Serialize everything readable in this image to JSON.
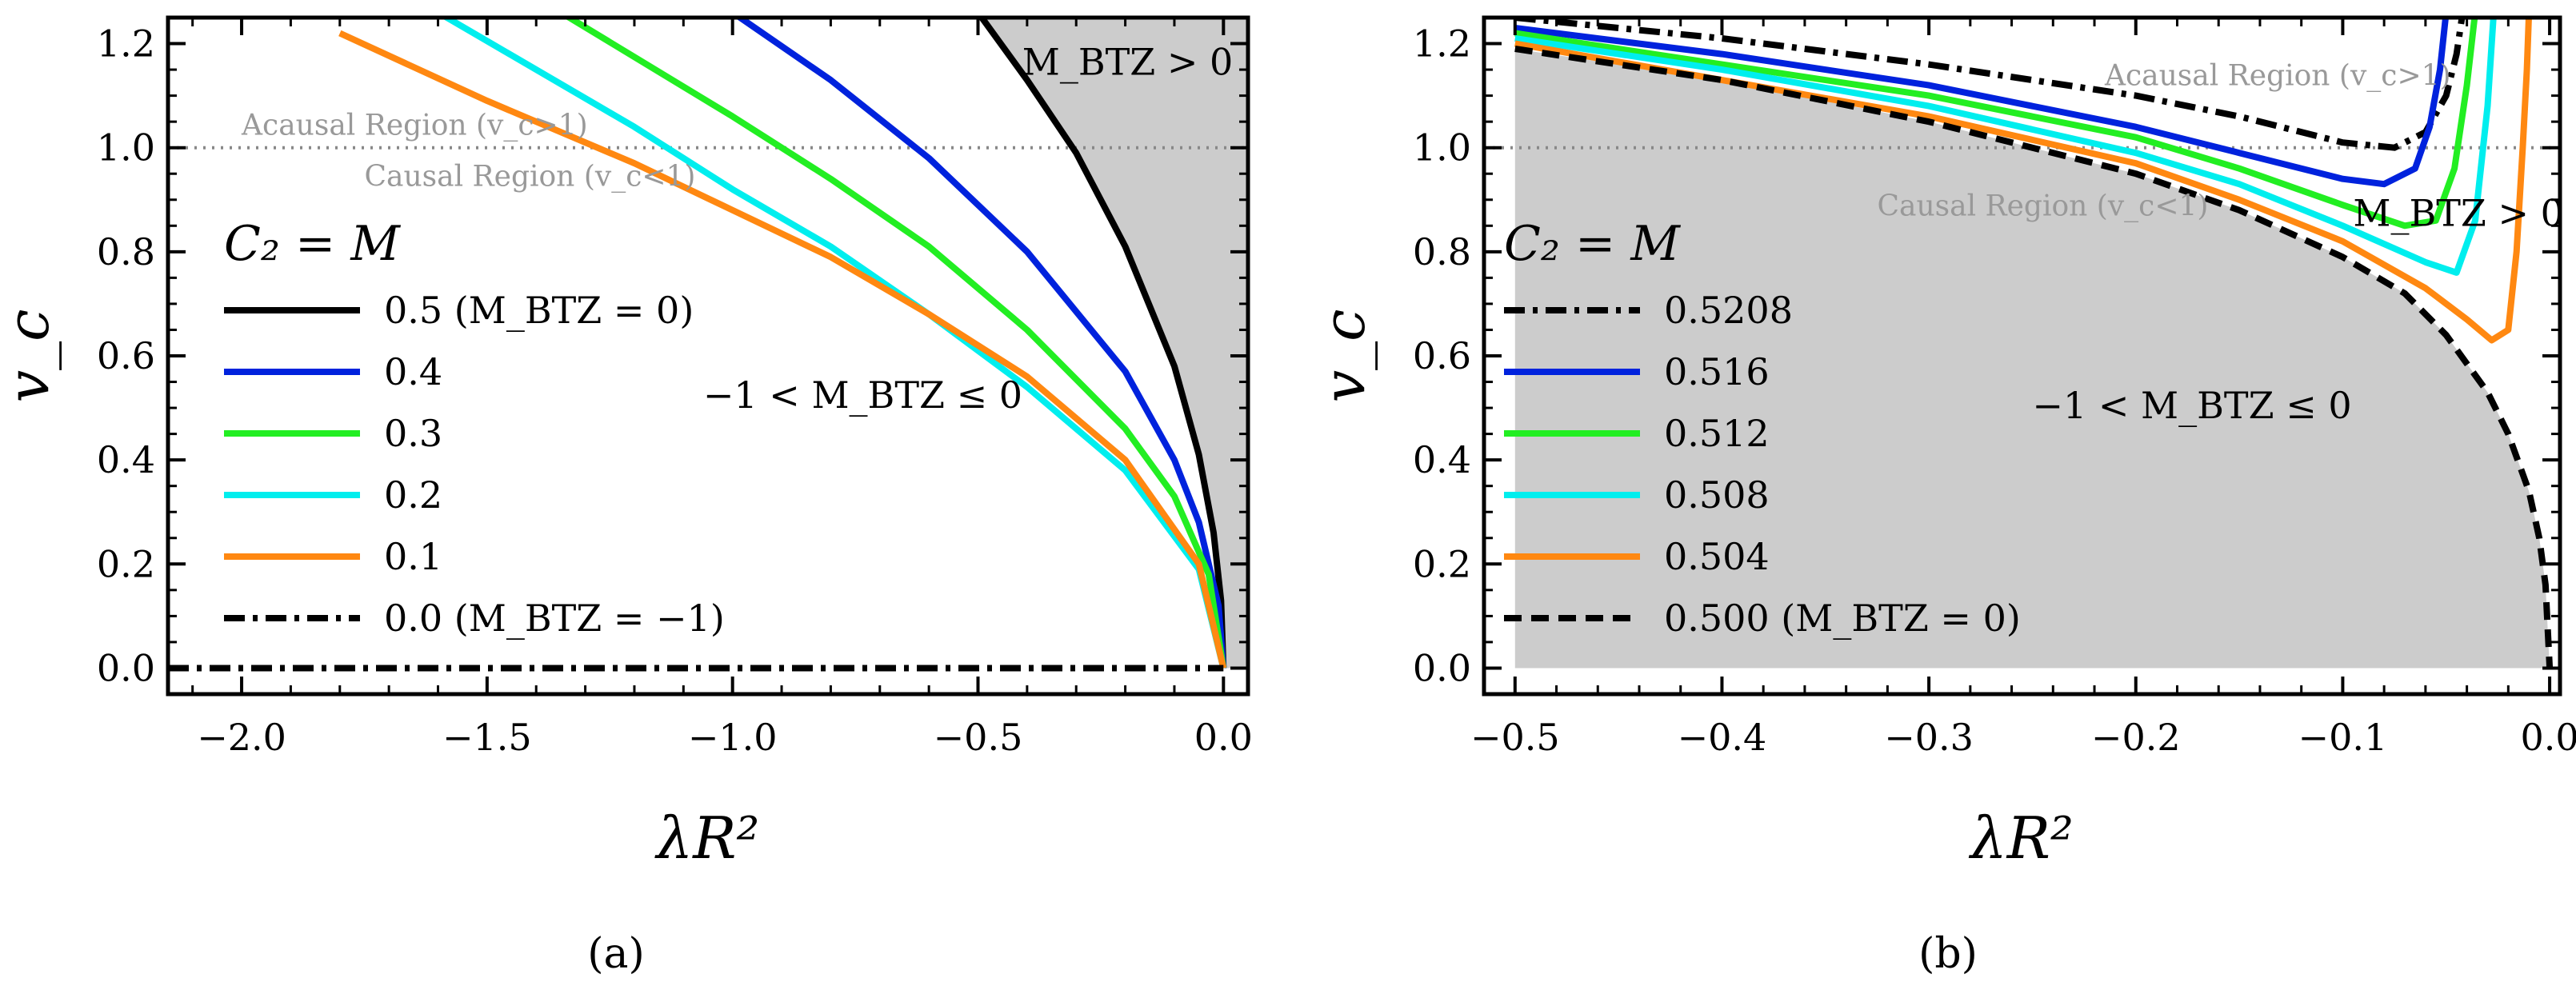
{
  "chart_data": [
    {
      "type": "line",
      "panel_label": "(a)",
      "xlabel": "λR²",
      "ylabel": "v_c",
      "xlim": [
        -2.15,
        0.05
      ],
      "ylim": [
        -0.05,
        1.25
      ],
      "xticks": [
        -2.0,
        -1.5,
        -1.0,
        -0.5,
        0.0
      ],
      "xtick_labels": [
        "−2.0",
        "−1.5",
        "−1.0",
        "−0.5",
        "0.0"
      ],
      "yticks": [
        0.0,
        0.2,
        0.4,
        0.6,
        0.8,
        1.0,
        1.2
      ],
      "ytick_labels": [
        "0.0",
        "0.2",
        "0.4",
        "0.6",
        "0.8",
        "1.0",
        "1.2"
      ],
      "grid": false,
      "reference_line": {
        "y": 1.0,
        "style": "dotted",
        "color": "#888888"
      },
      "region_labels": {
        "acausal": "Acausal Region (v_c>1)",
        "causal": "Causal Region (v_c<1)"
      },
      "shaded_region": {
        "label": "M_BTZ > 0",
        "color": "#cccccc"
      },
      "unshaded_region_label": "−1 < M_BTZ ≤ 0",
      "legend_title": "C₂ = M",
      "legend_position": "center-left",
      "series": [
        {
          "name": "0.5 (M_BTZ = 0)",
          "color": "#000000",
          "style": "solid",
          "x": [
            -0.5,
            -0.4,
            -0.3,
            -0.2,
            -0.1,
            -0.05,
            -0.02,
            -0.005,
            0.0
          ],
          "y": [
            1.26,
            1.13,
            0.99,
            0.81,
            0.58,
            0.41,
            0.26,
            0.13,
            0.0
          ]
        },
        {
          "name": "0.4",
          "color": "#0022dd",
          "style": "solid",
          "x": [
            -1.0,
            -0.8,
            -0.6,
            -0.4,
            -0.2,
            -0.1,
            -0.05,
            -0.01,
            0.0
          ],
          "y": [
            1.26,
            1.13,
            0.98,
            0.8,
            0.57,
            0.4,
            0.28,
            0.12,
            0.0
          ]
        },
        {
          "name": "0.3",
          "color": "#22ee22",
          "style": "solid",
          "x": [
            -1.35,
            -1.0,
            -0.8,
            -0.6,
            -0.4,
            -0.2,
            -0.1,
            -0.03,
            0.0
          ],
          "y": [
            1.26,
            1.06,
            0.94,
            0.81,
            0.65,
            0.46,
            0.33,
            0.18,
            0.0
          ]
        },
        {
          "name": "0.2",
          "color": "#00eeee",
          "style": "solid",
          "x": [
            -1.6,
            -1.2,
            -1.0,
            -0.8,
            -0.6,
            -0.4,
            -0.2,
            -0.05,
            0.0
          ],
          "y": [
            1.26,
            1.04,
            0.92,
            0.81,
            0.68,
            0.54,
            0.38,
            0.19,
            0.0
          ]
        },
        {
          "name": "0.1",
          "color": "#ff8811",
          "style": "solid",
          "x": [
            -1.8,
            -1.5,
            -1.2,
            -1.0,
            -0.8,
            -0.6,
            -0.4,
            -0.2,
            -0.05,
            0.0
          ],
          "y": [
            1.22,
            1.09,
            0.97,
            0.88,
            0.79,
            0.68,
            0.56,
            0.4,
            0.2,
            0.0
          ]
        },
        {
          "name": "0.0 (M_BTZ = −1)",
          "color": "#000000",
          "style": "dashdot",
          "x": [
            -2.15,
            0.0
          ],
          "y": [
            0.0,
            0.0
          ]
        }
      ]
    },
    {
      "type": "line",
      "panel_label": "(b)",
      "xlabel": "λR²",
      "ylabel": "v_c",
      "xlim": [
        -0.515,
        0.005
      ],
      "ylim": [
        -0.05,
        1.25
      ],
      "xticks": [
        -0.5,
        -0.4,
        -0.3,
        -0.2,
        -0.1,
        0.0
      ],
      "xtick_labels": [
        "−0.5",
        "−0.4",
        "−0.3",
        "−0.2",
        "−0.1",
        "0.0"
      ],
      "yticks": [
        0.0,
        0.2,
        0.4,
        0.6,
        0.8,
        1.0,
        1.2
      ],
      "ytick_labels": [
        "0.0",
        "0.2",
        "0.4",
        "0.6",
        "0.8",
        "1.0",
        "1.2"
      ],
      "grid": false,
      "reference_line": {
        "y": 1.0,
        "style": "dotted",
        "color": "#888888"
      },
      "region_labels": {
        "acausal": "Acausal Region (v_c>1)",
        "causal": "Causal Region (v_c<1)"
      },
      "shaded_region": {
        "label": "−1 < M_BTZ ≤ 0",
        "color": "#cccccc"
      },
      "unshaded_region_label": "M_BTZ > 0",
      "legend_title": "C₂ = M",
      "legend_position": "lower-left",
      "series": [
        {
          "name": "0.5208",
          "color": "#000000",
          "style": "dashdot",
          "x": [
            -0.5,
            -0.4,
            -0.3,
            -0.2,
            -0.15,
            -0.1,
            -0.075,
            -0.06,
            -0.05,
            -0.045,
            -0.042
          ],
          "y": [
            1.25,
            1.21,
            1.16,
            1.1,
            1.06,
            1.01,
            1.0,
            1.03,
            1.1,
            1.18,
            1.26
          ]
        },
        {
          "name": "0.516",
          "color": "#0022dd",
          "style": "solid",
          "x": [
            -0.5,
            -0.4,
            -0.3,
            -0.2,
            -0.15,
            -0.1,
            -0.08,
            -0.065,
            -0.058,
            -0.053,
            -0.05
          ],
          "y": [
            1.23,
            1.18,
            1.12,
            1.04,
            0.99,
            0.94,
            0.93,
            0.96,
            1.04,
            1.15,
            1.26
          ]
        },
        {
          "name": "0.512",
          "color": "#22ee22",
          "style": "solid",
          "x": [
            -0.5,
            -0.4,
            -0.3,
            -0.2,
            -0.15,
            -0.1,
            -0.07,
            -0.055,
            -0.046,
            -0.04,
            -0.036
          ],
          "y": [
            1.22,
            1.16,
            1.1,
            1.02,
            0.96,
            0.89,
            0.85,
            0.86,
            0.96,
            1.12,
            1.26
          ]
        },
        {
          "name": "0.508",
          "color": "#00eeee",
          "style": "solid",
          "x": [
            -0.5,
            -0.4,
            -0.3,
            -0.2,
            -0.15,
            -0.1,
            -0.06,
            -0.045,
            -0.036,
            -0.03,
            -0.027
          ],
          "y": [
            1.21,
            1.15,
            1.08,
            0.99,
            0.93,
            0.85,
            0.78,
            0.76,
            0.86,
            1.08,
            1.26
          ]
        },
        {
          "name": "0.504",
          "color": "#ff8811",
          "style": "solid",
          "x": [
            -0.5,
            -0.4,
            -0.3,
            -0.2,
            -0.15,
            -0.1,
            -0.06,
            -0.04,
            -0.028,
            -0.02,
            -0.016,
            -0.013,
            -0.011,
            -0.01
          ],
          "y": [
            1.2,
            1.13,
            1.06,
            0.97,
            0.9,
            0.82,
            0.73,
            0.67,
            0.63,
            0.65,
            0.8,
            1.0,
            1.15,
            1.26
          ]
        },
        {
          "name": "0.500 (M_BTZ = 0)",
          "color": "#000000",
          "style": "dashed",
          "x": [
            -0.5,
            -0.45,
            -0.4,
            -0.35,
            -0.3,
            -0.25,
            -0.2,
            -0.15,
            -0.1,
            -0.07,
            -0.05,
            -0.03,
            -0.02,
            -0.01,
            -0.005,
            -0.002,
            0.0
          ],
          "y": [
            1.19,
            1.16,
            1.13,
            1.09,
            1.05,
            1.0,
            0.95,
            0.88,
            0.79,
            0.72,
            0.64,
            0.53,
            0.45,
            0.34,
            0.25,
            0.16,
            0.0
          ]
        }
      ]
    }
  ]
}
